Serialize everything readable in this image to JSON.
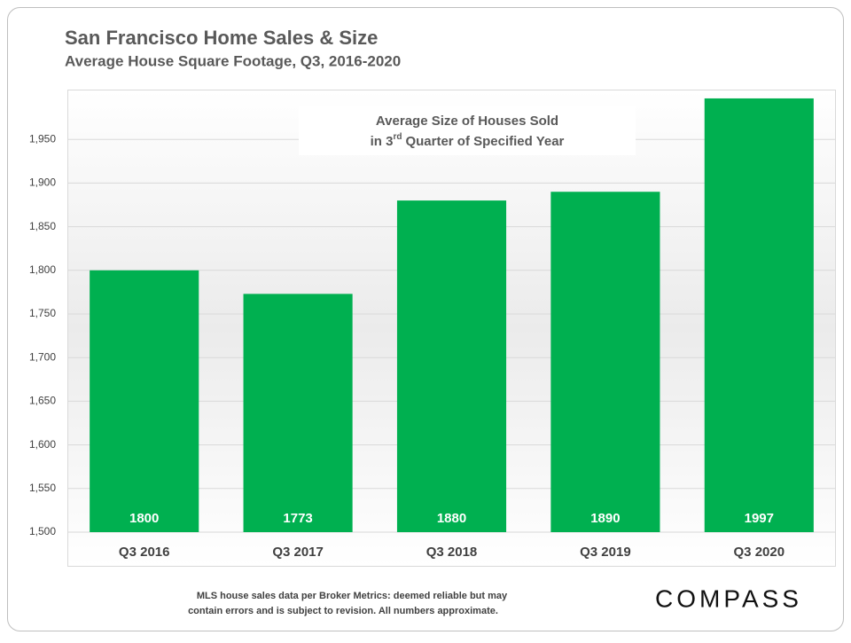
{
  "chart_data": {
    "type": "bar",
    "title": "San Francisco Home Sales & Size",
    "subtitle": "Average House Square Footage, Q3, 2016-2020",
    "annotation": {
      "line1": "Average Size of Houses Sold",
      "line2": [
        "in 3",
        "rd",
        "Quarter of Specified Year"
      ]
    },
    "categories": [
      "Q3 2016",
      "Q3 2017",
      "Q3 2018",
      "Q3 2019",
      "Q3 2020"
    ],
    "values": [
      1800,
      1773,
      1880,
      1890,
      1997
    ],
    "color": "#00b050",
    "ylim": [
      1500,
      2000
    ],
    "yticks": [
      {
        "value": 1500,
        "label": "1,500"
      },
      {
        "value": 1550,
        "label": "1,550"
      },
      {
        "value": 1600,
        "label": "1,600"
      },
      {
        "value": 1650,
        "label": "1,650"
      },
      {
        "value": 1700,
        "label": "1,700"
      },
      {
        "value": 1750,
        "label": "1,750"
      },
      {
        "value": 1800,
        "label": "1,800"
      },
      {
        "value": 1850,
        "label": "1,850"
      },
      {
        "value": 1900,
        "label": "1,900"
      },
      {
        "value": 1950,
        "label": "1,950"
      }
    ],
    "grid": true
  },
  "footer": {
    "note": [
      "MLS house sales data per Broker Metrics:  deemed reliable but may",
      "contain errors and is subject to revision. All numbers approximate."
    ],
    "logo": "COMPASS"
  }
}
